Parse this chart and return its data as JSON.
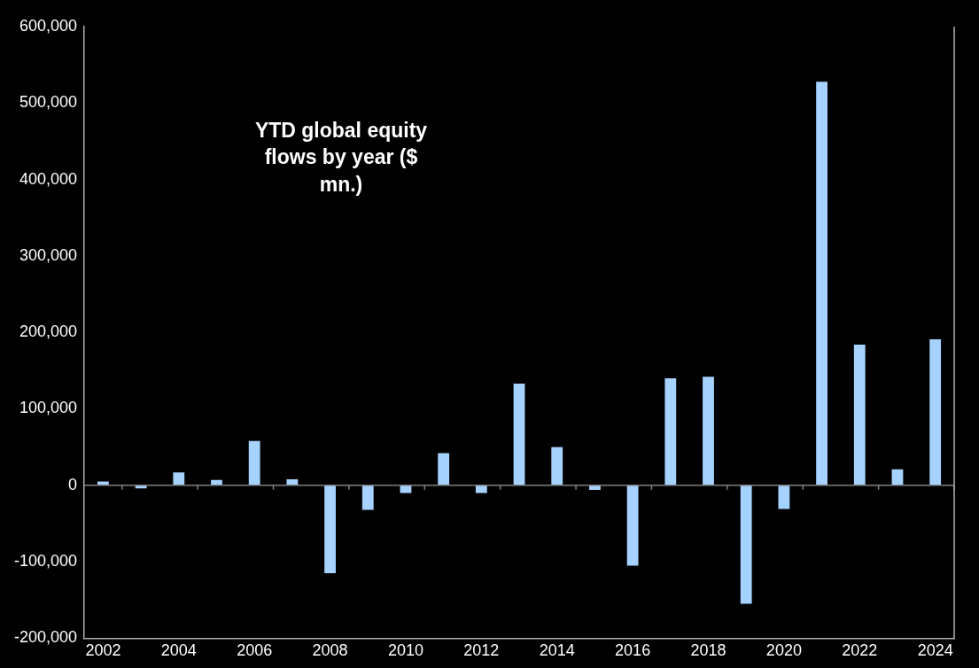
{
  "chart_data": {
    "type": "bar",
    "title": "YTD global equity flows by year ($ mn.)",
    "categories": [
      "2002",
      null,
      "2004",
      null,
      "2006",
      null,
      "2008",
      null,
      "2010",
      null,
      "2012",
      null,
      "2014",
      null,
      "2016",
      null,
      "2018",
      null,
      "2020",
      null,
      "2022",
      null,
      "2024"
    ],
    "values": [
      5000,
      -4000,
      17000,
      7000,
      58000,
      8000,
      -115000,
      -32000,
      -10000,
      42000,
      -10000,
      133000,
      50000,
      -6000,
      -105000,
      140000,
      142000,
      -155000,
      -31000,
      528000,
      184000,
      21000,
      191000
    ],
    "color": "#a6d2ff",
    "ylim": [
      -200000,
      600000
    ],
    "yticks": [
      {
        "value": -200000,
        "label": "-200,000"
      },
      {
        "value": -100000,
        "label": "-100,000"
      },
      0,
      {
        "value": 100000,
        "label": "100,000"
      },
      {
        "value": 200000,
        "label": "200,000"
      },
      {
        "value": 300000,
        "label": "300,000"
      },
      {
        "value": 400000,
        "label": "400,000"
      },
      {
        "value": 500000,
        "label": "500,000"
      },
      {
        "value": 600000,
        "label": "600,000"
      }
    ]
  }
}
